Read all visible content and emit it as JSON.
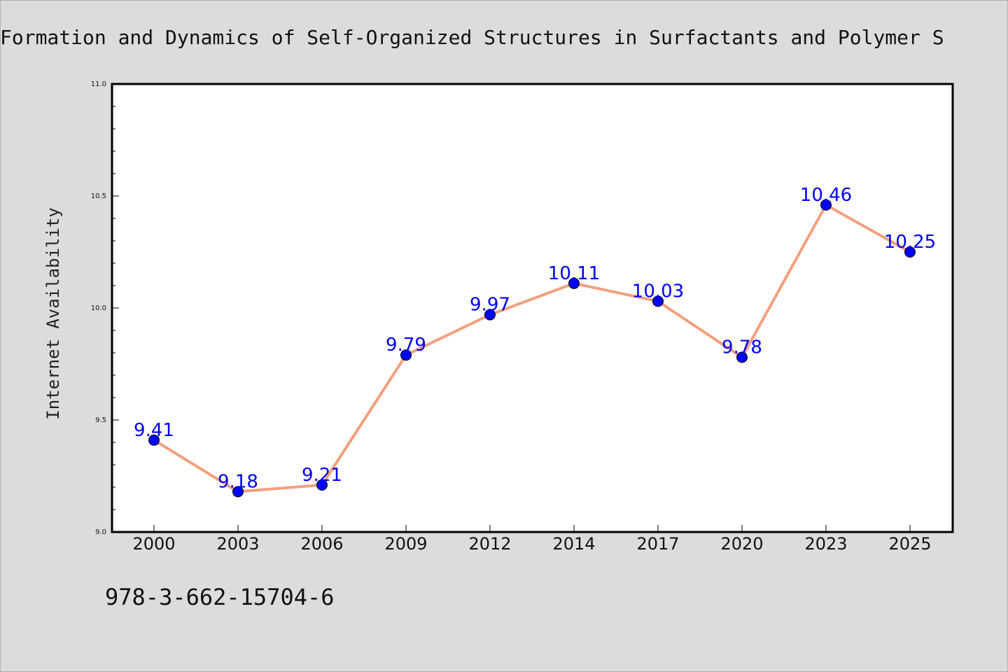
{
  "page": {
    "footer": "978-3-662-15704-6"
  },
  "chart_data": {
    "type": "line",
    "title": "Formation and Dynamics of Self-Organized Structures in Surfactants and Polymer S",
    "xlabel": "",
    "ylabel": "Internet Availability",
    "categories": [
      "2000",
      "2003",
      "2006",
      "2009",
      "2012",
      "2014",
      "2017",
      "2020",
      "2023",
      "2025"
    ],
    "series": [
      {
        "values": [
          9.41,
          9.18,
          9.21,
          9.79,
          9.97,
          10.11,
          10.03,
          9.78,
          10.46,
          10.25
        ],
        "data_labels": [
          "9.41",
          "9.18",
          "9.21",
          "9.79",
          "9.97",
          "10.11",
          "10.03",
          "9.78",
          "10.46",
          "10.25"
        ]
      }
    ],
    "ylim": [
      9.0,
      11.0
    ],
    "yticks": [
      "9.0",
      "9.5",
      "10.0",
      "10.5",
      "11.0"
    ],
    "grid": false,
    "colors": {
      "line": "#f4a07e",
      "marker": "#0000ff",
      "label": "#0000ff",
      "background": "#dcdcdc",
      "plot_background": "#ffffff"
    }
  }
}
